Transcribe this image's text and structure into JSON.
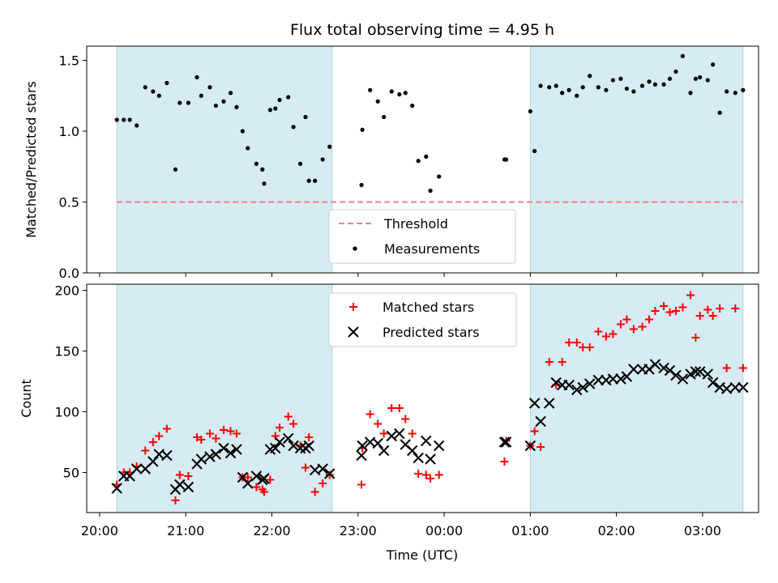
{
  "title": "Flux total observing time = 4.95 h",
  "xlabel": "Time (UTC)",
  "colors": {
    "shade": "#add8e6",
    "threshold": "#f08080",
    "matched": "#ff0000",
    "predicted": "#000000",
    "measurement": "#000000"
  },
  "chart_data": [
    {
      "type": "scatter",
      "panel": "top",
      "ylabel": "Matched/Predicted stars",
      "ylim": [
        0,
        1.6
      ],
      "yticks": [
        "0.0",
        "0.5",
        "1.0",
        "1.5"
      ],
      "ytick_values": [
        0,
        0.5,
        1.0,
        1.5
      ],
      "xlim_hours": [
        19.85,
        27.65
      ],
      "xticks": [
        "20:00",
        "21:00",
        "22:00",
        "23:00",
        "00:00",
        "01:00",
        "02:00",
        "03:00"
      ],
      "xtick_values": [
        20,
        21,
        22,
        23,
        24,
        25,
        26,
        27
      ],
      "shaded_intervals": [
        [
          20.2,
          22.7
        ],
        [
          25.0,
          27.47
        ]
      ],
      "threshold": {
        "label": "Threshold",
        "value": 0.5,
        "x_range": [
          20.2,
          27.47
        ]
      },
      "legend": {
        "placement": "lower center",
        "entries": [
          "Threshold",
          "Measurements"
        ]
      },
      "series": [
        {
          "name": "Measurements",
          "x": [
            20.2,
            20.28,
            20.35,
            20.43,
            20.53,
            20.62,
            20.69,
            20.78,
            20.88,
            20.93,
            21.03,
            21.13,
            21.18,
            21.28,
            21.35,
            21.44,
            21.52,
            21.59,
            21.66,
            21.72,
            21.82,
            21.89,
            21.91,
            21.98,
            22.04,
            22.09,
            22.19,
            22.25,
            22.33,
            22.39,
            22.43,
            22.5,
            22.59,
            22.67,
            23.04,
            23.05,
            23.14,
            23.23,
            23.3,
            23.39,
            23.48,
            23.55,
            23.63,
            23.7,
            23.79,
            23.84,
            23.94,
            24.7,
            24.72,
            25.0,
            25.05,
            25.12,
            25.22,
            25.3,
            25.37,
            25.45,
            25.54,
            25.61,
            25.69,
            25.79,
            25.88,
            25.96,
            26.05,
            26.12,
            26.2,
            26.3,
            26.38,
            26.45,
            26.55,
            26.62,
            26.69,
            26.77,
            26.86,
            26.92,
            26.97,
            27.06,
            27.12,
            27.2,
            27.28,
            27.38,
            27.47
          ],
          "y": [
            1.08,
            1.08,
            1.08,
            1.04,
            1.31,
            1.28,
            1.25,
            1.34,
            0.73,
            1.2,
            1.2,
            1.38,
            1.25,
            1.31,
            1.18,
            1.21,
            1.27,
            1.17,
            1.0,
            0.88,
            0.77,
            0.73,
            0.63,
            1.15,
            1.16,
            1.22,
            1.24,
            1.03,
            0.77,
            1.1,
            0.65,
            0.65,
            0.8,
            0.89,
            0.62,
            1.01,
            1.29,
            1.21,
            1.1,
            1.28,
            1.26,
            1.27,
            1.18,
            0.79,
            0.82,
            0.58,
            0.68,
            0.8,
            0.8,
            1.14,
            0.86,
            1.32,
            1.31,
            1.32,
            1.27,
            1.29,
            1.25,
            1.31,
            1.39,
            1.31,
            1.29,
            1.36,
            1.37,
            1.3,
            1.28,
            1.32,
            1.35,
            1.33,
            1.33,
            1.37,
            1.42,
            1.53,
            1.27,
            1.37,
            1.38,
            1.36,
            1.47,
            1.13,
            1.28,
            1.27,
            1.29
          ]
        }
      ]
    },
    {
      "type": "scatter",
      "panel": "bottom",
      "ylabel": "Count",
      "ylim": [
        17,
        205
      ],
      "yticks": [
        "50",
        "100",
        "150",
        "200"
      ],
      "ytick_values": [
        50,
        100,
        150,
        200
      ],
      "xlim_hours": [
        19.85,
        27.65
      ],
      "xticks": [
        "20:00",
        "21:00",
        "22:00",
        "23:00",
        "00:00",
        "01:00",
        "02:00",
        "03:00"
      ],
      "xtick_values": [
        20,
        21,
        22,
        23,
        24,
        25,
        26,
        27
      ],
      "shaded_intervals": [
        [
          20.2,
          22.7
        ],
        [
          25.0,
          27.47
        ]
      ],
      "legend": {
        "placement": "upper center",
        "entries": [
          "Matched stars",
          "Predicted stars"
        ]
      },
      "series": [
        {
          "name": "Matched stars",
          "marker": "plus",
          "x": [
            20.2,
            20.28,
            20.35,
            20.43,
            20.53,
            20.62,
            20.69,
            20.78,
            20.88,
            20.93,
            21.03,
            21.13,
            21.18,
            21.28,
            21.35,
            21.44,
            21.52,
            21.59,
            21.66,
            21.72,
            21.82,
            21.89,
            21.91,
            21.98,
            22.04,
            22.09,
            22.19,
            22.25,
            22.33,
            22.39,
            22.43,
            22.5,
            22.59,
            22.67,
            23.04,
            23.05,
            23.14,
            23.23,
            23.3,
            23.39,
            23.48,
            23.55,
            23.63,
            23.7,
            23.79,
            23.84,
            23.94,
            24.7,
            24.72,
            25.0,
            25.05,
            25.12,
            25.22,
            25.3,
            25.37,
            25.45,
            25.54,
            25.61,
            25.69,
            25.79,
            25.88,
            25.96,
            26.05,
            26.12,
            26.2,
            26.3,
            26.38,
            26.45,
            26.55,
            26.62,
            26.69,
            26.77,
            26.86,
            26.92,
            26.97,
            27.06,
            27.12,
            27.2,
            27.28,
            27.38,
            27.47
          ],
          "y": [
            40,
            50,
            50,
            55,
            68,
            75,
            80,
            86,
            27,
            48,
            47,
            79,
            77,
            82,
            78,
            85,
            84,
            82,
            46,
            46,
            38,
            36,
            34,
            44,
            80,
            87,
            96,
            90,
            72,
            54,
            79,
            34,
            41,
            48,
            40,
            70,
            98,
            90,
            82,
            103,
            103,
            94,
            82,
            49,
            48,
            45,
            48,
            59,
            76,
            72,
            84,
            71,
            141,
            122,
            141,
            157,
            157,
            153,
            153,
            166,
            162,
            164,
            172,
            176,
            168,
            170,
            176,
            183,
            187,
            182,
            183,
            186,
            196,
            161,
            179,
            184,
            179,
            185,
            136,
            185,
            136
          ]
        },
        {
          "name": "Predicted stars",
          "marker": "x",
          "x": [
            20.2,
            20.28,
            20.35,
            20.43,
            20.53,
            20.62,
            20.69,
            20.78,
            20.88,
            20.93,
            21.03,
            21.13,
            21.18,
            21.28,
            21.35,
            21.44,
            21.52,
            21.59,
            21.66,
            21.72,
            21.82,
            21.89,
            21.91,
            21.98,
            22.04,
            22.09,
            22.19,
            22.25,
            22.33,
            22.39,
            22.43,
            22.5,
            22.59,
            22.67,
            23.04,
            23.05,
            23.14,
            23.23,
            23.3,
            23.39,
            23.48,
            23.55,
            23.63,
            23.7,
            23.79,
            23.84,
            23.94,
            24.7,
            24.72,
            25.0,
            25.05,
            25.12,
            25.22,
            25.3,
            25.37,
            25.45,
            25.54,
            25.61,
            25.69,
            25.79,
            25.88,
            25.96,
            26.05,
            26.12,
            26.2,
            26.3,
            26.38,
            26.45,
            26.55,
            26.62,
            26.69,
            26.77,
            26.86,
            26.92,
            26.97,
            27.06,
            27.12,
            27.2,
            27.28,
            27.38,
            27.47
          ],
          "y": [
            37,
            47,
            47,
            53,
            53,
            59,
            65,
            64,
            36,
            40,
            38,
            57,
            61,
            63,
            65,
            70,
            66,
            69,
            46,
            41,
            47,
            44,
            45,
            69,
            70,
            75,
            78,
            72,
            70,
            70,
            72,
            52,
            53,
            49,
            64,
            72,
            75,
            74,
            68,
            80,
            82,
            73,
            68,
            62,
            76,
            61,
            72,
            75,
            75,
            72,
            107,
            92,
            107,
            124,
            122,
            122,
            118,
            120,
            123,
            126,
            126,
            127,
            127,
            129,
            135,
            135,
            135,
            139,
            136,
            134,
            130,
            127,
            131,
            133,
            133,
            131,
            124,
            120,
            119,
            120,
            120
          ]
        }
      ]
    }
  ]
}
